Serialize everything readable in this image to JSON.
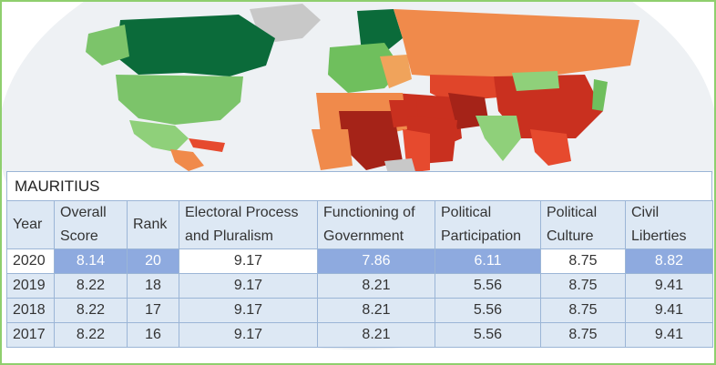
{
  "country": "MAURITIUS",
  "columns": [
    "Year",
    "Overall Score",
    "Rank",
    "Electoral Process and Pluralism",
    "Functioning of Government",
    "Political Participation",
    "Political Culture",
    "Civil Liberties"
  ],
  "rows": [
    {
      "year": "2020",
      "overall": "8.14",
      "rank": "20",
      "electoral": "9.17",
      "functioning": "7.86",
      "participation": "6.11",
      "culture": "8.75",
      "liberties": "8.82"
    },
    {
      "year": "2019",
      "overall": "8.22",
      "rank": "18",
      "electoral": "9.17",
      "functioning": "8.21",
      "participation": "5.56",
      "culture": "8.75",
      "liberties": "9.41"
    },
    {
      "year": "2018",
      "overall": "8.22",
      "rank": "17",
      "electoral": "9.17",
      "functioning": "8.21",
      "participation": "5.56",
      "culture": "8.75",
      "liberties": "9.41"
    },
    {
      "year": "2017",
      "overall": "8.22",
      "rank": "16",
      "electoral": "9.17",
      "functioning": "8.21",
      "participation": "5.56",
      "culture": "8.75",
      "liberties": "9.41"
    }
  ],
  "highlighted_2020_columns": [
    "overall",
    "rank",
    "functioning",
    "participation",
    "liberties"
  ],
  "colors": {
    "frame_border": "#8fcf6e",
    "table_border": "#9bb5d6",
    "row_fill": "#dde8f4",
    "highlight_fill": "#8eaadf",
    "map_full_democracy": "#0b6b3a",
    "map_flawed_democracy": "#7cc46a",
    "map_hybrid": "#f08a4b",
    "map_authoritarian": "#c9301f",
    "map_no_data": "#c8c8c8"
  }
}
